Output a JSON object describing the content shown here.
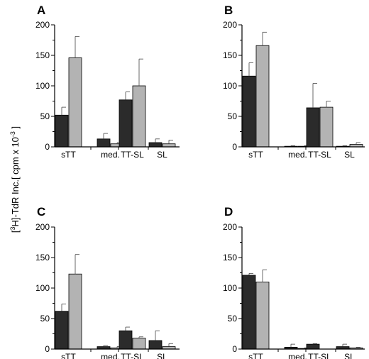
{
  "figure": {
    "ylabel_main": "[",
    "ylabel_sup1": "3",
    "ylabel_mid": "H]-TdR Inc.[ cpm x 10",
    "ylabel_sup2": "-3",
    "ylabel_end": " ]"
  },
  "colors": {
    "dark_bar": "#2b2b2b",
    "light_bar": "#b3b3b3",
    "axis": "#000000"
  },
  "chart_data": [
    {
      "panel": "A",
      "type": "bar",
      "categories": [
        "sTT",
        "med.",
        "TT-SL",
        "SL"
      ],
      "ylim": [
        0,
        200
      ],
      "yticks": [
        0,
        50,
        100,
        150,
        200
      ],
      "series": [
        {
          "values": [
            52,
            13,
            77,
            7
          ],
          "errors": [
            13,
            9,
            13,
            6
          ]
        },
        {
          "values": [
            146,
            5,
            100,
            5
          ],
          "errors": [
            35,
            2,
            44,
            6
          ]
        }
      ]
    },
    {
      "panel": "B",
      "type": "bar",
      "categories": [
        "sTT",
        "med.",
        "TT-SL",
        "SL"
      ],
      "ylim": [
        0,
        200
      ],
      "yticks": [
        0,
        50,
        100,
        150,
        200
      ],
      "series": [
        {
          "values": [
            116,
            1,
            64,
            1
          ],
          "errors": [
            22,
            1,
            40,
            1
          ]
        },
        {
          "values": [
            166,
            1,
            65,
            4
          ],
          "errors": [
            22,
            1,
            10,
            3
          ]
        }
      ]
    },
    {
      "panel": "C",
      "type": "bar",
      "categories": [
        "sTT",
        "med.",
        "TT-SL",
        "SL"
      ],
      "ylim": [
        0,
        200
      ],
      "yticks": [
        0,
        50,
        100,
        150,
        200
      ],
      "series": [
        {
          "values": [
            62,
            4,
            30,
            14
          ],
          "errors": [
            12,
            2,
            6,
            16
          ]
        },
        {
          "values": [
            123,
            2,
            18,
            4
          ],
          "errors": [
            32,
            2,
            2,
            5
          ]
        }
      ]
    },
    {
      "panel": "D",
      "type": "bar",
      "categories": [
        "sTT",
        "med.",
        "TT-SL",
        "SL"
      ],
      "ylim": [
        0,
        200
      ],
      "yticks": [
        0,
        50,
        100,
        150,
        200
      ],
      "series": [
        {
          "values": [
            121,
            3,
            8,
            4
          ],
          "errors": [
            3,
            5,
            1,
            4
          ]
        },
        {
          "values": [
            110,
            1,
            0,
            2
          ],
          "errors": [
            20,
            1,
            0,
            1
          ]
        }
      ]
    }
  ]
}
